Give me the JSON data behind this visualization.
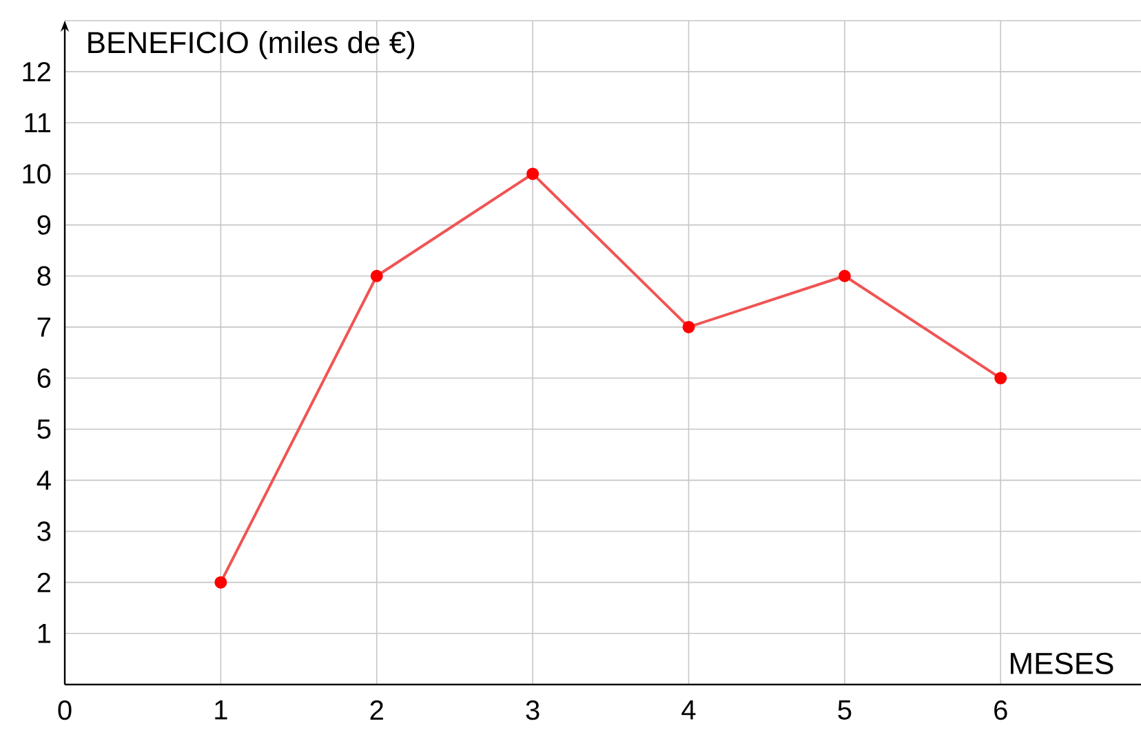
{
  "chart_data": {
    "type": "line",
    "xlabel": "MESES",
    "ylabel": "BENEFICIO (miles de €)",
    "x": [
      1,
      2,
      3,
      4,
      5,
      6
    ],
    "series": [
      {
        "color": "#f05454",
        "values": [
          2,
          8,
          10,
          7,
          8,
          6
        ]
      }
    ],
    "xlim": [
      0,
      6.9
    ],
    "ylim": [
      0,
      13
    ],
    "xticks": [
      0,
      1,
      2,
      3,
      4,
      5,
      6
    ],
    "yticks": [
      1,
      2,
      3,
      4,
      5,
      6,
      7,
      8,
      9,
      10,
      11,
      12
    ],
    "grid": true,
    "marker": "circle",
    "line_style": "solid"
  }
}
